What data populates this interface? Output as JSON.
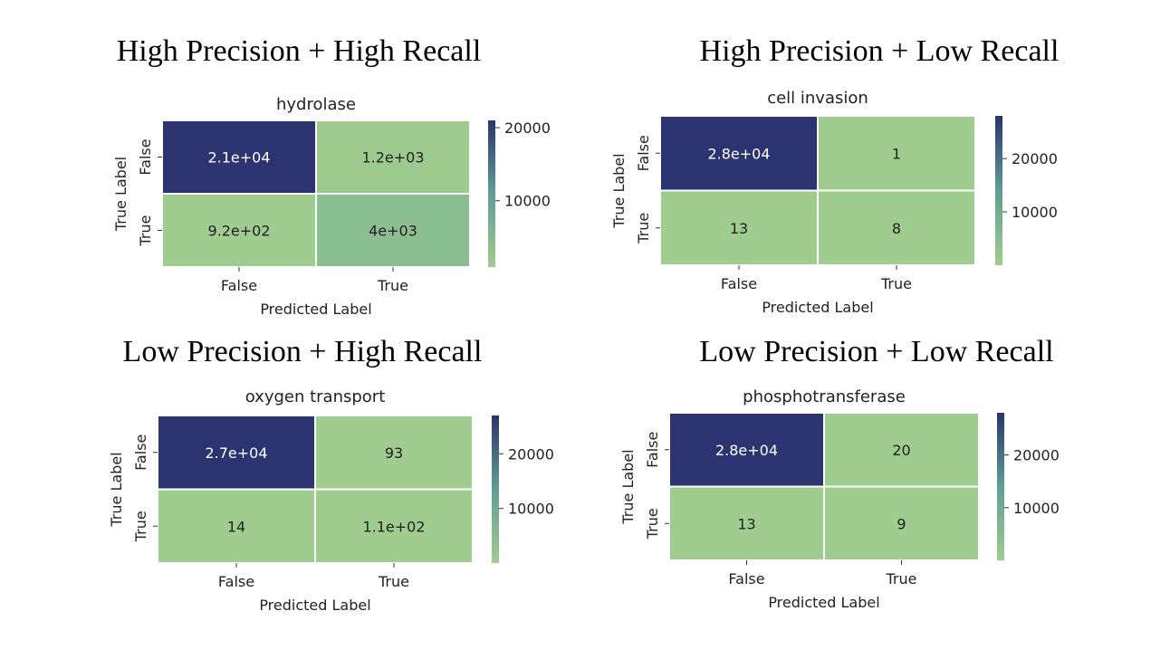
{
  "section_titles": {
    "top_left": "High Precision + High Recall",
    "top_right": "High Precision + Low Recall",
    "bottom_left": "Low Precision + High Recall",
    "bottom_right": "Low Precision + Low Recall"
  },
  "colors": {
    "cmap_low": "#9fcc8f",
    "cmap_mid": "#5f9e93",
    "cmap_high": "#2b3370"
  },
  "chart_data": [
    {
      "type": "heatmap",
      "title": "hydrolase",
      "xlabel": "Predicted Label",
      "ylabel": "True Label",
      "x_categories": [
        "False",
        "True"
      ],
      "y_categories": [
        "False",
        "True"
      ],
      "values": [
        [
          21000,
          1200
        ],
        [
          920,
          4000
        ]
      ],
      "annotations": [
        [
          "2.1e+04",
          "1.2e+03"
        ],
        [
          "9.2e+02",
          "4e+03"
        ]
      ],
      "colorbar": {
        "ticks": [
          10000,
          20000
        ],
        "tick_labels": [
          "10000",
          "20000"
        ],
        "range": [
          920,
          21000
        ]
      }
    },
    {
      "type": "heatmap",
      "title": "cell invasion",
      "xlabel": "Predicted Label",
      "ylabel": "True Label",
      "x_categories": [
        "False",
        "True"
      ],
      "y_categories": [
        "False",
        "True"
      ],
      "values": [
        [
          28000,
          1
        ],
        [
          13,
          8
        ]
      ],
      "annotations": [
        [
          "2.8e+04",
          "1"
        ],
        [
          "13",
          "8"
        ]
      ],
      "colorbar": {
        "ticks": [
          10000,
          20000
        ],
        "tick_labels": [
          "10000",
          "20000"
        ],
        "range": [
          1,
          28000
        ]
      }
    },
    {
      "type": "heatmap",
      "title": "oxygen transport",
      "xlabel": "Predicted Label",
      "ylabel": "True Label",
      "x_categories": [
        "False",
        "True"
      ],
      "y_categories": [
        "False",
        "True"
      ],
      "values": [
        [
          27000,
          93
        ],
        [
          14,
          110
        ]
      ],
      "annotations": [
        [
          "2.7e+04",
          "93"
        ],
        [
          "14",
          "1.1e+02"
        ]
      ],
      "colorbar": {
        "ticks": [
          10000,
          20000
        ],
        "tick_labels": [
          "10000",
          "20000"
        ],
        "range": [
          14,
          27000
        ]
      }
    },
    {
      "type": "heatmap",
      "title": "phosphotransferase",
      "xlabel": "Predicted Label",
      "ylabel": "True Label",
      "x_categories": [
        "False",
        "True"
      ],
      "y_categories": [
        "False",
        "True"
      ],
      "values": [
        [
          28000,
          20
        ],
        [
          13,
          9
        ]
      ],
      "annotations": [
        [
          "2.8e+04",
          "20"
        ],
        [
          "13",
          "9"
        ]
      ],
      "colorbar": {
        "ticks": [
          10000,
          20000
        ],
        "tick_labels": [
          "10000",
          "20000"
        ],
        "range": [
          9,
          28000
        ]
      }
    }
  ]
}
